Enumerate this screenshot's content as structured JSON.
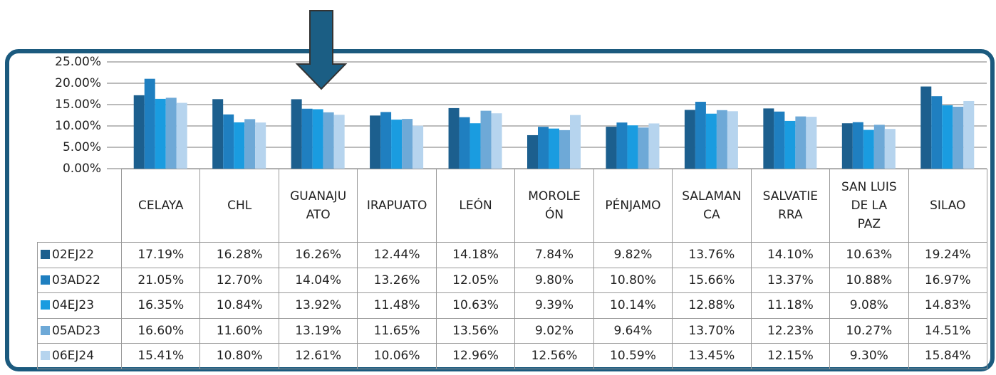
{
  "chart_data": {
    "type": "bar",
    "categories": [
      "CELAYA",
      "CHL",
      "GUANAJUATO",
      "IRAPUATO",
      "LEÓN",
      "MOROLEÓN",
      "PÉNJAMO",
      "SALAMANCA",
      "SALVATIERRA",
      "SAN LUIS DE LA PAZ",
      "SILAO"
    ],
    "series": [
      {
        "name": "02EJ22",
        "color": "#1c5f8e",
        "values": [
          17.19,
          16.28,
          16.26,
          12.44,
          14.18,
          7.84,
          9.82,
          13.76,
          14.1,
          10.63,
          19.24
        ],
        "value_labels": [
          "17.19%",
          "16.28%",
          "16.26%",
          "12.44%",
          "14.18%",
          "7.84%",
          "9.82%",
          "13.76%",
          "14.10%",
          "10.63%",
          "19.24%"
        ]
      },
      {
        "name": "03AD22",
        "color": "#1f7fc0",
        "values": [
          21.05,
          12.7,
          14.04,
          13.26,
          12.05,
          9.8,
          10.8,
          15.66,
          13.37,
          10.88,
          16.97
        ],
        "value_labels": [
          "21.05%",
          "12.70%",
          "14.04%",
          "13.26%",
          "12.05%",
          "9.80%",
          "10.80%",
          "15.66%",
          "13.37%",
          "10.88%",
          "16.97%"
        ]
      },
      {
        "name": "04EJ23",
        "color": "#1a9ce0",
        "values": [
          16.35,
          10.84,
          13.92,
          11.48,
          10.63,
          9.39,
          10.14,
          12.88,
          11.18,
          9.08,
          14.83
        ],
        "value_labels": [
          "16.35%",
          "10.84%",
          "13.92%",
          "11.48%",
          "10.63%",
          "9.39%",
          "10.14%",
          "12.88%",
          "11.18%",
          "9.08%",
          "14.83%"
        ]
      },
      {
        "name": "05AD23",
        "color": "#6ea9d7",
        "values": [
          16.6,
          11.6,
          13.19,
          11.65,
          13.56,
          9.02,
          9.64,
          13.7,
          12.23,
          10.27,
          14.51
        ],
        "value_labels": [
          "16.60%",
          "11.60%",
          "13.19%",
          "11.65%",
          "13.56%",
          "9.02%",
          "9.64%",
          "13.70%",
          "12.23%",
          "10.27%",
          "14.51%"
        ]
      },
      {
        "name": "06EJ24",
        "color": "#b6d4ee",
        "values": [
          15.41,
          10.8,
          12.61,
          10.06,
          12.96,
          12.56,
          10.59,
          13.45,
          12.15,
          9.3,
          15.84
        ],
        "value_labels": [
          "15.41%",
          "10.80%",
          "12.61%",
          "10.06%",
          "12.96%",
          "12.56%",
          "10.59%",
          "13.45%",
          "12.15%",
          "9.30%",
          "15.84%"
        ]
      }
    ],
    "ylim": [
      0,
      25
    ],
    "yticks": [
      {
        "value": 0,
        "label": "0.00%"
      },
      {
        "value": 5,
        "label": "5.00%"
      },
      {
        "value": 10,
        "label": "10.00%"
      },
      {
        "value": 15,
        "label": "15.00%"
      },
      {
        "value": 20,
        "label": "20.00%"
      },
      {
        "value": 25,
        "label": "25.00%"
      }
    ],
    "grid": true
  }
}
